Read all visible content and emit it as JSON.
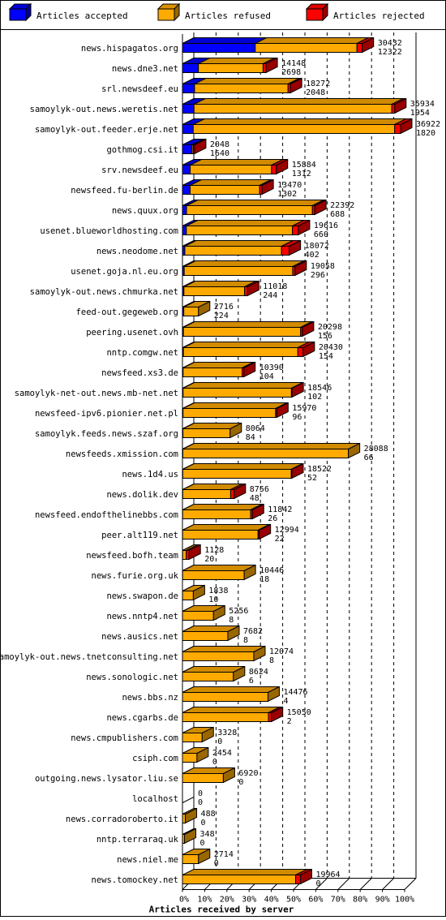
{
  "chart_data": {
    "type": "bar",
    "orientation": "horizontal",
    "stacked": true,
    "legend_position": "top",
    "grid": true,
    "xlabel": "Articles received by server",
    "xlim": [
      0,
      100
    ],
    "x_ticks": [
      "0%",
      "10%",
      "20%",
      "30%",
      "40%",
      "50%",
      "60%",
      "70%",
      "80%",
      "90%",
      "100%"
    ],
    "series": [
      {
        "name": "Articles accepted",
        "color": "#0000ff"
      },
      {
        "name": "Articles refused",
        "color": "#ffaa00"
      },
      {
        "name": "Articles rejected",
        "color": "#ff0000"
      }
    ],
    "rows": [
      {
        "server": "news.hispagatos.org",
        "total": "30432",
        "accepted": "12322",
        "acc": 12322,
        "ref": 17210,
        "rej": 900
      },
      {
        "server": "news.dne3.net",
        "total": "14148",
        "accepted": "2698",
        "acc": 2698,
        "ref": 10950,
        "rej": 500
      },
      {
        "server": "srl.newsdeef.eu",
        "total": "18272",
        "accepted": "2048",
        "acc": 2048,
        "ref": 15824,
        "rej": 400
      },
      {
        "server": "samoylyk-out.news.weretis.net",
        "total": "35934",
        "accepted": "1954",
        "acc": 1954,
        "ref": 33480,
        "rej": 500
      },
      {
        "server": "samoylyk-out.feeder.erje.net",
        "total": "36922",
        "accepted": "1820",
        "acc": 1820,
        "ref": 34102,
        "rej": 1000
      },
      {
        "server": "gothmog.csi.it",
        "total": "2048",
        "accepted": "1640",
        "acc": 1640,
        "ref": 208,
        "rej": 200
      },
      {
        "server": "srv.newsdeef.eu",
        "total": "15884",
        "accepted": "1312",
        "acc": 1312,
        "ref": 13772,
        "rej": 800
      },
      {
        "server": "newsfeed.fu-berlin.de",
        "total": "13470",
        "accepted": "1302",
        "acc": 1302,
        "ref": 11768,
        "rej": 400
      },
      {
        "server": "news.quux.org",
        "total": "22392",
        "accepted": "688",
        "acc": 688,
        "ref": 21304,
        "rej": 400
      },
      {
        "server": "usenet.blueworldhosting.com",
        "total": "19616",
        "accepted": "660",
        "acc": 660,
        "ref": 17956,
        "rej": 1000
      },
      {
        "server": "news.neodome.net",
        "total": "18072",
        "accepted": "402",
        "acc": 402,
        "ref": 16370,
        "rej": 1300
      },
      {
        "server": "usenet.goja.nl.eu.org",
        "total": "19058",
        "accepted": "296",
        "acc": 296,
        "ref": 18362,
        "rej": 400
      },
      {
        "server": "samoylyk-out.news.chmurka.net",
        "total": "11018",
        "accepted": "244",
        "acc": 244,
        "ref": 10274,
        "rej": 500
      },
      {
        "server": "feed-out.gegeweb.org",
        "total": "2716",
        "accepted": "224",
        "acc": 224,
        "ref": 2492,
        "rej": 0
      },
      {
        "server": "peering.usenet.ovh",
        "total": "20298",
        "accepted": "156",
        "acc": 156,
        "ref": 19842,
        "rej": 300
      },
      {
        "server": "nntp.comgw.net",
        "total": "20430",
        "accepted": "154",
        "acc": 154,
        "ref": 19376,
        "rej": 900
      },
      {
        "server": "newsfeed.xs3.de",
        "total": "10390",
        "accepted": "104",
        "acc": 104,
        "ref": 9986,
        "rej": 300
      },
      {
        "server": "samoylyk-net-out.news.mb-net.net",
        "total": "18546",
        "accepted": "102",
        "acc": 102,
        "ref": 18344,
        "rej": 100
      },
      {
        "server": "newsfeed-ipv6.pionier.net.pl",
        "total": "15970",
        "accepted": "96",
        "acc": 96,
        "ref": 15674,
        "rej": 200
      },
      {
        "server": "samoylyk.feeds.news.szaf.org",
        "total": "8064",
        "accepted": "84",
        "acc": 84,
        "ref": 7980,
        "rej": 0
      },
      {
        "server": "newsfeeds.xmission.com",
        "total": "28088",
        "accepted": "66",
        "acc": 66,
        "ref": 28022,
        "rej": 0
      },
      {
        "server": "news.1d4.us",
        "total": "18522",
        "accepted": "52",
        "acc": 52,
        "ref": 18370,
        "rej": 100
      },
      {
        "server": "news.dolik.dev",
        "total": "8756",
        "accepted": "48",
        "acc": 48,
        "ref": 8108,
        "rej": 600
      },
      {
        "server": "newsfeed.endofthelinebbs.com",
        "total": "11842",
        "accepted": "26",
        "acc": 26,
        "ref": 11516,
        "rej": 300
      },
      {
        "server": "peer.alt119.net",
        "total": "12994",
        "accepted": "22",
        "acc": 22,
        "ref": 12772,
        "rej": 200
      },
      {
        "server": "newsfeed.bofh.team",
        "total": "1128",
        "accepted": "20",
        "acc": 20,
        "ref": 608,
        "rej": 500
      },
      {
        "server": "news.furie.org.uk",
        "total": "10446",
        "accepted": "18",
        "acc": 18,
        "ref": 10428,
        "rej": 0
      },
      {
        "server": "news.swapon.de",
        "total": "1838",
        "accepted": "10",
        "acc": 10,
        "ref": 1828,
        "rej": 0
      },
      {
        "server": "news.nntp4.net",
        "total": "5256",
        "accepted": "8",
        "acc": 8,
        "ref": 5248,
        "rej": 0
      },
      {
        "server": "news.ausics.net",
        "total": "7682",
        "accepted": "8",
        "acc": 8,
        "ref": 7674,
        "rej": 0
      },
      {
        "server": "samoylyk-out.news.tnetconsulting.net",
        "total": "12074",
        "accepted": "8",
        "acc": 8,
        "ref": 12066,
        "rej": 0
      },
      {
        "server": "news.sonologic.net",
        "total": "8624",
        "accepted": "6",
        "acc": 6,
        "ref": 8618,
        "rej": 0
      },
      {
        "server": "news.bbs.nz",
        "total": "14476",
        "accepted": "4",
        "acc": 4,
        "ref": 14472,
        "rej": 0
      },
      {
        "server": "news.cgarbs.de",
        "total": "15050",
        "accepted": "2",
        "acc": 2,
        "ref": 14548,
        "rej": 500
      },
      {
        "server": "news.cmpublishers.com",
        "total": "3328",
        "accepted": "0",
        "acc": 0,
        "ref": 3328,
        "rej": 0
      },
      {
        "server": "csiph.com",
        "total": "2454",
        "accepted": "0",
        "acc": 0,
        "ref": 2454,
        "rej": 0
      },
      {
        "server": "outgoing.news.lysator.liu.se",
        "total": "6920",
        "accepted": "0",
        "acc": 0,
        "ref": 6920,
        "rej": 0
      },
      {
        "server": "localhost",
        "total": "0",
        "accepted": "0",
        "acc": 0,
        "ref": 0,
        "rej": 0
      },
      {
        "server": "news.corradoroberto.it",
        "total": "488",
        "accepted": "0",
        "acc": 0,
        "ref": 488,
        "rej": 0
      },
      {
        "server": "nntp.terraraq.uk",
        "total": "348",
        "accepted": "0",
        "acc": 0,
        "ref": 348,
        "rej": 0
      },
      {
        "server": "news.niel.me",
        "total": "2714",
        "accepted": "0",
        "acc": 0,
        "ref": 2714,
        "rej": 0
      },
      {
        "server": "news.tomockey.net",
        "total": "19964",
        "accepted": "0",
        "acc": 0,
        "ref": 19164,
        "rej": 800
      }
    ]
  }
}
